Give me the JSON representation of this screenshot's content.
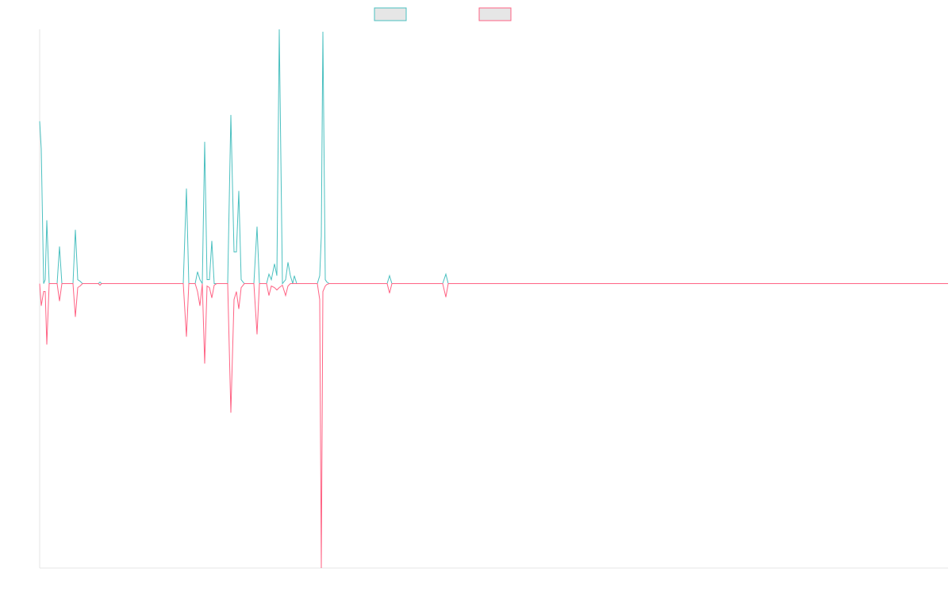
{
  "chart_data": {
    "type": "line",
    "x": [
      0,
      2,
      5,
      7,
      9,
      12,
      22,
      25,
      28,
      42,
      45,
      48,
      51,
      54,
      74,
      76,
      78,
      181,
      185,
      188,
      196,
      199,
      202,
      205,
      208,
      211,
      214,
      217,
      220,
      223,
      237,
      241,
      245,
      248,
      251,
      254,
      258,
      270,
      274,
      277,
      286,
      289,
      292,
      296,
      299,
      302,
      306,
      310,
      313,
      316,
      319,
      321,
      324,
      350,
      353,
      355,
      357,
      360,
      362,
      365,
      438,
      441,
      444,
      508,
      512,
      515,
      1145
    ],
    "series": [
      {
        "color": "#4bc0c0",
        "values": [
          205,
          170,
          0,
          5,
          80,
          0,
          0,
          47,
          0,
          0,
          68,
          5,
          3,
          0,
          0,
          2,
          0,
          0,
          120,
          0,
          0,
          15,
          5,
          0,
          179,
          5,
          5,
          54,
          0,
          0,
          0,
          213,
          40,
          40,
          117,
          5,
          0,
          0,
          72,
          0,
          0,
          12,
          5,
          25,
          10,
          321,
          0,
          5,
          27,
          10,
          0,
          10,
          0,
          0,
          10,
          60,
          318,
          5,
          2,
          0,
          0,
          10,
          0,
          0,
          12,
          0,
          0
        ]
      },
      {
        "color": "#ff6384",
        "values": [
          0,
          -28,
          -10,
          -10,
          -77,
          0,
          0,
          -22,
          0,
          0,
          -42,
          -5,
          -3,
          0,
          0,
          -2,
          0,
          0,
          -67,
          0,
          0,
          -10,
          -28,
          0,
          -101,
          -3,
          -5,
          -18,
          -2,
          0,
          0,
          -163,
          -20,
          -10,
          -32,
          -5,
          0,
          0,
          -64,
          0,
          0,
          -15,
          -3,
          -5,
          -8,
          -5,
          -2,
          -15,
          -3,
          0,
          0,
          0,
          0,
          0,
          -20,
          -359,
          -10,
          -3,
          -1,
          0,
          0,
          -12,
          0,
          0,
          -17,
          0,
          0
        ]
      }
    ],
    "xlim": [
      0,
      1145
    ],
    "ylim": [
      -359,
      321
    ],
    "legend": "top"
  }
}
